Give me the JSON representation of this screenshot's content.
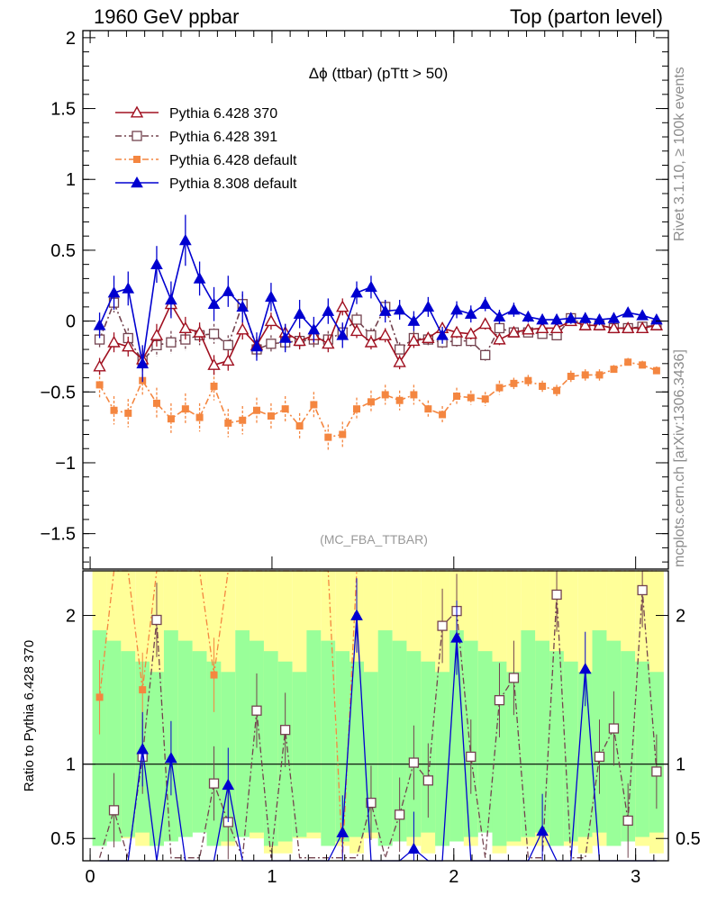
{
  "header": {
    "left": "1960 GeV ppbar",
    "right": "Top (parton level)"
  },
  "side_labels": {
    "rivet": "Rivet 3.1.10, ≥ 100k events",
    "mcplots": "mcplots.cern.ch [arXiv:1306.3436]"
  },
  "chart_data": [
    {
      "type": "line",
      "title": "Δϕ (ttbar) (pTtt > 50)",
      "watermark": "(MC_FBA_TTBAR)",
      "xlim": [
        -0.04,
        3.18
      ],
      "ylim": [
        -1.75,
        2.05
      ],
      "x_ticks": [
        0,
        1,
        2,
        3
      ],
      "y_ticks": [
        -1.5,
        -1,
        -0.5,
        0,
        0.5,
        1,
        1.5,
        2
      ],
      "y_tick_labels": [
        "−1.5",
        "−1",
        "−0.5",
        "0",
        "0.5",
        "1",
        "1.5",
        "2"
      ],
      "legend_position": "top-left",
      "x": [
        0.052,
        0.131,
        0.209,
        0.288,
        0.366,
        0.445,
        0.524,
        0.602,
        0.681,
        0.759,
        0.838,
        0.916,
        0.995,
        1.073,
        1.152,
        1.23,
        1.309,
        1.388,
        1.466,
        1.545,
        1.623,
        1.702,
        1.78,
        1.859,
        1.937,
        2.016,
        2.094,
        2.173,
        2.251,
        2.33,
        2.409,
        2.487,
        2.566,
        2.644,
        2.723,
        2.801,
        2.88,
        2.958,
        3.037,
        3.115
      ],
      "series": [
        {
          "name": "Pythia 6.428 370",
          "color": "#a01020",
          "marker": "open-triangle",
          "dash": "solid",
          "values": [
            -0.32,
            -0.15,
            -0.18,
            -0.27,
            -0.1,
            0.12,
            -0.05,
            -0.08,
            -0.31,
            -0.28,
            -0.06,
            -0.17,
            0.0,
            -0.08,
            -0.14,
            -0.1,
            -0.16,
            0.1,
            -0.07,
            -0.15,
            -0.1,
            -0.29,
            -0.14,
            -0.12,
            -0.05,
            -0.08,
            -0.09,
            -0.02,
            -0.13,
            -0.08,
            -0.06,
            -0.05,
            -0.05,
            0.0,
            -0.03,
            -0.03,
            -0.05,
            -0.05,
            -0.05,
            -0.03
          ],
          "errors": [
            0.06,
            0.07,
            0.07,
            0.08,
            0.08,
            0.08,
            0.08,
            0.07,
            0.07,
            0.07,
            0.07,
            0.06,
            0.06,
            0.06,
            0.06,
            0.06,
            0.06,
            0.06,
            0.05,
            0.05,
            0.05,
            0.05,
            0.05,
            0.04,
            0.04,
            0.04,
            0.04,
            0.04,
            0.04,
            0.03,
            0.03,
            0.03,
            0.03,
            0.03,
            0.03,
            0.03,
            0.03,
            0.03,
            0.02,
            0.02
          ]
        },
        {
          "name": "Pythia 6.428 391",
          "color": "#73434f",
          "marker": "open-square",
          "dash": "dashdot",
          "values": [
            -0.13,
            0.13,
            -0.12,
            -0.28,
            -0.17,
            -0.15,
            -0.13,
            -0.1,
            -0.09,
            -0.17,
            0.12,
            -0.2,
            -0.16,
            -0.15,
            -0.14,
            -0.13,
            -0.13,
            -0.08,
            0.01,
            -0.1,
            0.1,
            -0.2,
            -0.12,
            -0.13,
            -0.15,
            -0.14,
            -0.14,
            -0.24,
            -0.05,
            -0.08,
            -0.08,
            -0.09,
            -0.1,
            0.02,
            -0.03,
            -0.03,
            -0.05,
            -0.05,
            -0.04,
            -0.03
          ],
          "errors": [
            0.06,
            0.07,
            0.07,
            0.08,
            0.08,
            0.08,
            0.08,
            0.07,
            0.07,
            0.07,
            0.07,
            0.06,
            0.06,
            0.06,
            0.06,
            0.06,
            0.06,
            0.06,
            0.05,
            0.05,
            0.05,
            0.05,
            0.05,
            0.04,
            0.04,
            0.04,
            0.04,
            0.04,
            0.04,
            0.03,
            0.03,
            0.03,
            0.03,
            0.03,
            0.03,
            0.03,
            0.03,
            0.03,
            0.02,
            0.02
          ]
        },
        {
          "name": "Pythia 6.428 default",
          "color": "#f48640",
          "marker": "filled-square",
          "dash": "dashdot",
          "values": [
            -0.45,
            -0.63,
            -0.65,
            -0.42,
            -0.58,
            -0.69,
            -0.62,
            -0.68,
            -0.46,
            -0.72,
            -0.7,
            -0.63,
            -0.67,
            -0.62,
            -0.74,
            -0.59,
            -0.82,
            -0.8,
            -0.62,
            -0.57,
            -0.52,
            -0.56,
            -0.52,
            -0.62,
            -0.66,
            -0.53,
            -0.54,
            -0.55,
            -0.47,
            -0.44,
            -0.42,
            -0.46,
            -0.49,
            -0.39,
            -0.38,
            -0.38,
            -0.34,
            -0.29,
            -0.31,
            -0.35
          ],
          "errors": [
            0.09,
            0.1,
            0.1,
            0.11,
            0.11,
            0.11,
            0.11,
            0.1,
            0.1,
            0.1,
            0.1,
            0.09,
            0.09,
            0.09,
            0.09,
            0.09,
            0.09,
            0.09,
            0.08,
            0.08,
            0.07,
            0.07,
            0.07,
            0.06,
            0.06,
            0.06,
            0.05,
            0.05,
            0.05,
            0.04,
            0.04,
            0.04,
            0.04,
            0.04,
            0.04,
            0.04,
            0.03,
            0.03,
            0.03,
            0.03
          ]
        },
        {
          "name": "Pythia 8.308 default",
          "color": "#0000d0",
          "marker": "filled-triangle",
          "dash": "solid",
          "values": [
            -0.03,
            0.2,
            0.23,
            -0.3,
            0.4,
            0.15,
            0.57,
            0.3,
            0.12,
            0.21,
            0.1,
            -0.18,
            0.17,
            -0.12,
            0.05,
            -0.06,
            0.07,
            -0.1,
            0.2,
            0.24,
            0.07,
            0.08,
            0.0,
            0.1,
            -0.1,
            0.08,
            0.05,
            0.12,
            0.03,
            0.08,
            0.03,
            0.01,
            0.01,
            0.02,
            0.02,
            0.01,
            0.02,
            0.06,
            0.04,
            0.01
          ],
          "errors": [
            0.09,
            0.12,
            0.12,
            0.13,
            0.13,
            0.13,
            0.18,
            0.12,
            0.12,
            0.11,
            0.11,
            0.1,
            0.1,
            0.1,
            0.1,
            0.09,
            0.09,
            0.09,
            0.08,
            0.08,
            0.08,
            0.07,
            0.07,
            0.07,
            0.06,
            0.06,
            0.06,
            0.05,
            0.05,
            0.05,
            0.04,
            0.04,
            0.04,
            0.04,
            0.04,
            0.04,
            0.04,
            0.03,
            0.03,
            0.03
          ]
        }
      ]
    },
    {
      "type": "line",
      "ylabel": "Ratio to Pythia 6.428 370",
      "xlim": [
        -0.04,
        3.18
      ],
      "ylim": [
        0.35,
        2.3
      ],
      "x_ticks": [
        0,
        1,
        2,
        3
      ],
      "x_tick_labels": [
        "0",
        "1",
        "2",
        "3"
      ],
      "y_ticks": [
        0.5,
        1,
        2
      ],
      "reference_line": 1,
      "band_colors": {
        "inner": "#99ff99",
        "outer": "#ffff99"
      },
      "series": [
        {
          "name": "Pythia 6.428 391",
          "values": [
            0.37,
            0.69,
            0.37,
            1.05,
            1.97,
            0.37,
            0.37,
            0.37,
            0.87,
            0.61,
            0.37,
            1.36,
            0.37,
            1.23,
            0.37,
            0.37,
            0.37,
            0.37,
            0.37,
            0.74,
            0.37,
            0.66,
            1.01,
            0.89,
            1.93,
            2.03,
            1.05,
            0.37,
            1.43,
            1.58,
            0.37,
            0.37,
            2.14,
            0.37,
            0.37,
            1.05,
            1.24,
            0.62,
            2.17,
            0.95
          ]
        },
        {
          "name": "Pythia 6.428 default",
          "values": [
            1.45,
            2.3,
            2.3,
            1.5,
            2.3,
            2.3,
            2.3,
            2.3,
            1.6,
            2.3,
            2.3,
            2.3,
            2.3,
            2.3,
            2.3,
            2.3,
            2.3,
            0.37,
            2.3,
            2.3,
            2.3,
            2.3,
            2.3,
            2.3,
            2.3,
            2.3,
            2.3,
            2.3,
            2.3,
            2.3,
            2.3,
            2.3,
            2.3,
            2.3,
            2.3,
            2.3,
            2.3,
            2.3,
            2.3,
            2.3
          ]
        },
        {
          "name": "Pythia 8.308 default",
          "values": [
            0.35,
            0.35,
            0.35,
            1.1,
            0.35,
            1.04,
            0.35,
            0.35,
            0.35,
            0.86,
            0.35,
            0.35,
            0.35,
            0.35,
            0.35,
            0.35,
            0.35,
            0.54,
            2.0,
            0.35,
            0.35,
            0.35,
            0.43,
            0.35,
            0.35,
            1.85,
            0.35,
            0.35,
            0.35,
            0.35,
            0.35,
            0.55,
            0.35,
            0.35,
            1.64,
            0.35,
            0.35,
            0.35,
            0.35,
            0.35
          ]
        }
      ]
    }
  ]
}
